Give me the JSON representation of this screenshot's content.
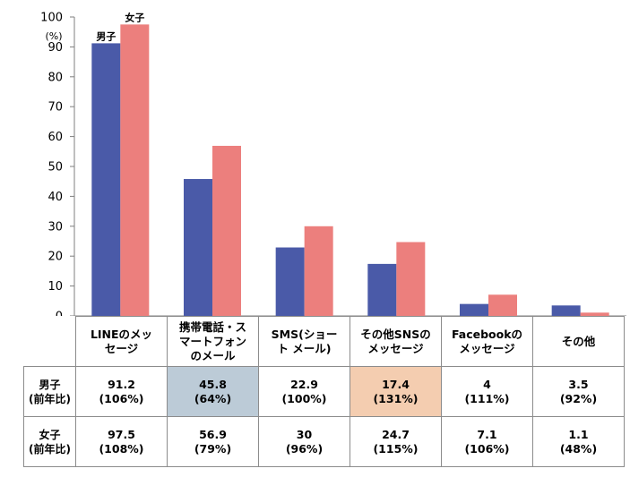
{
  "chart_data": {
    "type": "bar",
    "y_unit": "(%)",
    "ylim": [
      0,
      100
    ],
    "yticks": [
      0,
      10,
      20,
      30,
      40,
      50,
      60,
      70,
      80,
      90,
      100
    ],
    "categories": [
      [
        "LINEのメッ",
        "セージ"
      ],
      [
        "携帯電話・ス",
        "マートフォン",
        "のメール"
      ],
      [
        "SMS(ショー",
        "ト メール)"
      ],
      [
        "その他SNSの",
        "メッセージ"
      ],
      [
        "Facebookの",
        "メッセージ"
      ],
      [
        "その他"
      ]
    ],
    "series": [
      {
        "name": "男子",
        "color": "#4a5aa8",
        "values": [
          91.2,
          45.8,
          22.9,
          17.4,
          4,
          3.5
        ],
        "changes": [
          "(106%)",
          "(64%)",
          "(100%)",
          "(131%)",
          "(111%)",
          "(92%)"
        ]
      },
      {
        "name": "女子",
        "color": "#ec7f7d",
        "values": [
          97.5,
          56.9,
          30,
          24.7,
          7.1,
          1.1
        ],
        "changes": [
          "(108%)",
          "(79%)",
          "(96%)",
          "(115%)",
          "(106%)",
          "(48%)"
        ]
      }
    ],
    "row_suffix": "(前年比)",
    "highlights": {
      "boys_col1": "#bccbd7",
      "boys_col3": "#f4cdb0"
    },
    "axis_color": "#7f7f7f"
  }
}
